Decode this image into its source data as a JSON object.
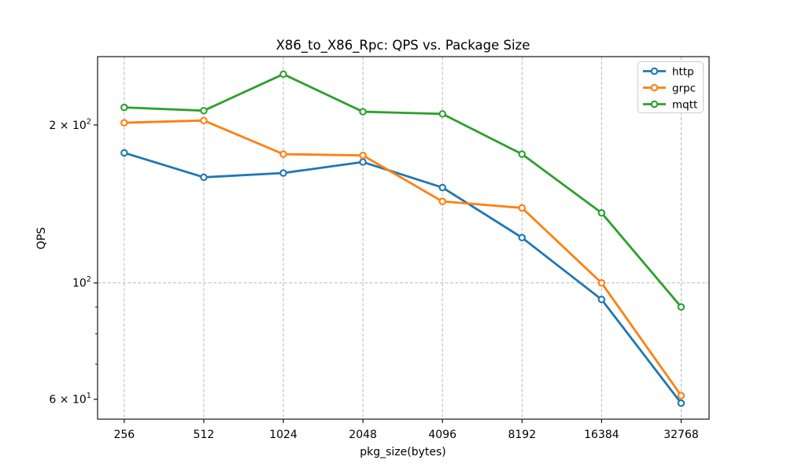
{
  "figure": {
    "background": "#ffffff"
  },
  "chart_data": {
    "type": "line",
    "title": "X86_to_X86_Rpc: QPS vs. Package Size",
    "xlabel": "pkg_size(bytes)",
    "ylabel": "QPS",
    "x_scale": "log2",
    "y_scale": "log10",
    "x": [
      256,
      512,
      1024,
      2048,
      4096,
      8192,
      16384,
      32768
    ],
    "xtick_labels": [
      "256",
      "512",
      "1024",
      "2048",
      "4096",
      "8192",
      "16384",
      "32768"
    ],
    "series": [
      {
        "name": "http",
        "color": "#1f77b4",
        "values": [
          177,
          159,
          162,
          170,
          152,
          122,
          93,
          59
        ]
      },
      {
        "name": "grpc",
        "color": "#ff7f0e",
        "values": [
          202,
          204,
          176,
          175,
          143,
          139,
          100,
          61
        ]
      },
      {
        "name": "mqtt",
        "color": "#2ca02c",
        "values": [
          216,
          213,
          250,
          212,
          210,
          176,
          136,
          90
        ]
      }
    ],
    "xlim": [
      203,
      41800
    ],
    "ylim": [
      55,
      270
    ],
    "yticks_major": [
      {
        "value": 200,
        "base": "2 × 10",
        "exp": "2"
      },
      {
        "value": 100,
        "base": "10",
        "exp": "2"
      },
      {
        "value": 60,
        "base": "6 × 10",
        "exp": "1"
      }
    ],
    "yticks_minor": [
      90,
      80,
      70
    ],
    "grid": {
      "color": "#b9b9b9",
      "dash": "4,2.4",
      "y_gridlines": [
        100
      ]
    },
    "legend": {
      "position": "upper right",
      "entries": [
        "http",
        "grpc",
        "mqtt"
      ]
    },
    "marker": {
      "shape": "circle-open",
      "face": "#ffffff"
    },
    "axis_color": "#000000"
  }
}
